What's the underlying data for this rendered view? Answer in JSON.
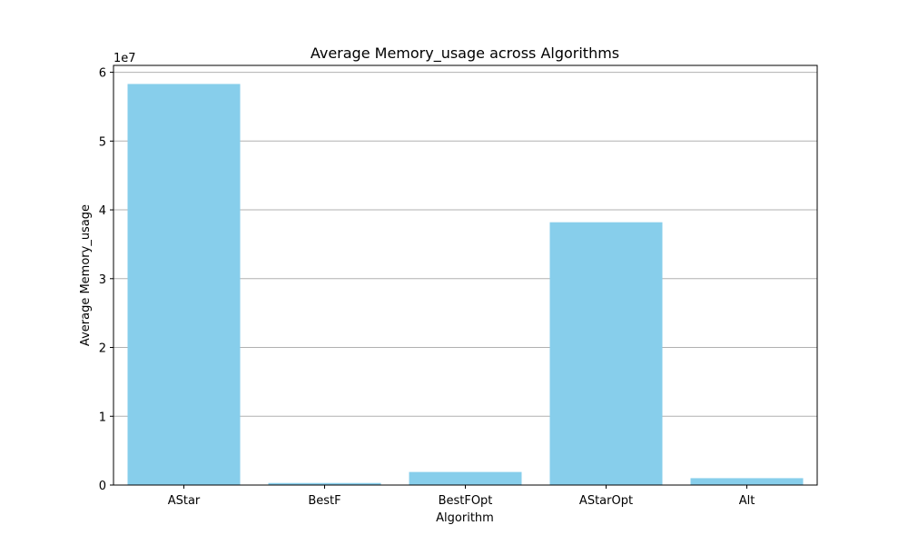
{
  "chart_data": {
    "type": "bar",
    "title": "Average Memory_usage across Algorithms",
    "xlabel": "Algorithm",
    "ylabel": "Average Memory_usage",
    "y_offset_label": "1e7",
    "categories": [
      "AStar",
      "BestF",
      "BestFOpt",
      "AStarOpt",
      "Alt"
    ],
    "values": [
      58300000,
      300000,
      1900000,
      38200000,
      1000000
    ],
    "ylim": [
      0,
      61000000
    ],
    "y_ticks": [
      0,
      10000000,
      20000000,
      30000000,
      40000000,
      50000000,
      60000000
    ],
    "y_tick_labels": [
      "0",
      "1",
      "2",
      "3",
      "4",
      "5",
      "6"
    ],
    "grid": "y",
    "bar_color": "#87CEEB"
  }
}
